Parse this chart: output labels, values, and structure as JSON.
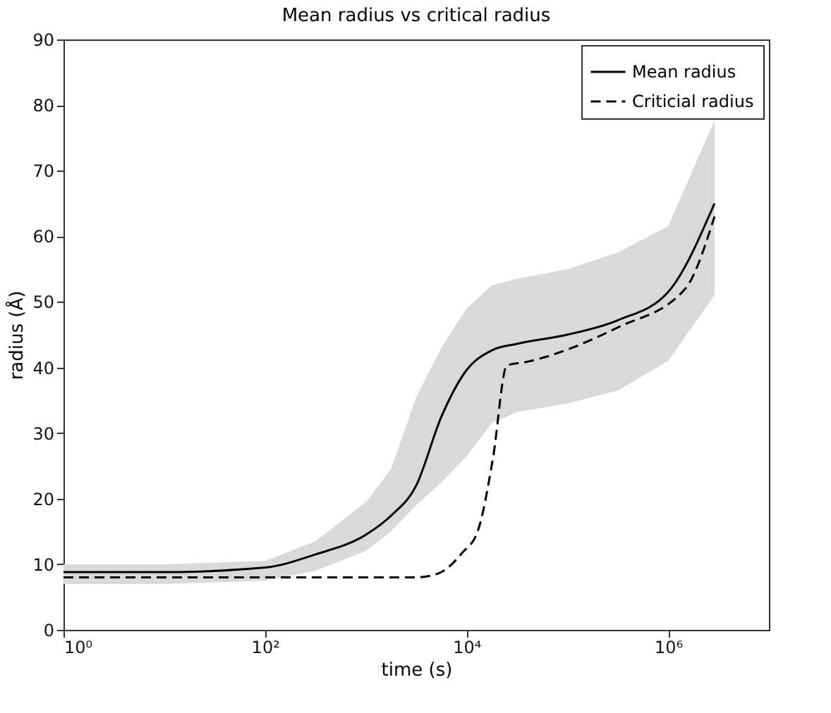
{
  "chart_data": {
    "type": "line",
    "title": "Mean radius vs critical radius",
    "xlabel": "time (s)",
    "ylabel": "radius (Å)",
    "log": "x",
    "xlim": [
      1,
      10000000
    ],
    "xticks": [
      {
        "value": 1,
        "label": "10⁰"
      },
      {
        "value": 100,
        "label": "10²"
      },
      {
        "value": 10000,
        "label": "10⁴"
      },
      {
        "value": 1000000,
        "label": "10⁶"
      }
    ],
    "ylim": [
      0,
      90
    ],
    "yticks": [
      0,
      10,
      20,
      30,
      40,
      50,
      60,
      70,
      80,
      90
    ],
    "grid": false,
    "legend": "top right",
    "marker": "none",
    "series": [
      {
        "name": "Mean radius",
        "color": "#000000",
        "line_style": "solid",
        "x": [
          1,
          10,
          100,
          316,
          1000,
          1778,
          3162,
          5623,
          10000,
          17783,
          31623,
          100000,
          316228,
          1000000,
          2884000
        ],
        "values": [
          8.8,
          8.8,
          9.5,
          11.5,
          14.5,
          17.4,
          22,
          32.5,
          39.6,
          42.6,
          43.6,
          45,
          47.2,
          51.5,
          65
        ],
        "lower": [
          7,
          7,
          7.5,
          9,
          12,
          15,
          19,
          22.5,
          26.5,
          31.5,
          33.2,
          34.5,
          36.5,
          41,
          51
        ],
        "upper": [
          10,
          10,
          10.5,
          13.5,
          19.5,
          24.5,
          35.5,
          43,
          49,
          52.5,
          53.5,
          55,
          57.5,
          61.5,
          77.7
        ]
      },
      {
        "name": "Criticial radius",
        "color": "#000000",
        "line_style": "dashed",
        "x": [
          1,
          1000,
          3162,
          5248,
          9120,
          12882,
          18197,
          25119,
          38019,
          316228,
          1479108,
          2884000
        ],
        "values": [
          8,
          8,
          8,
          8.6,
          11.8,
          15,
          26,
          40.3,
          40.8,
          46.1,
          52,
          63
        ]
      }
    ]
  }
}
